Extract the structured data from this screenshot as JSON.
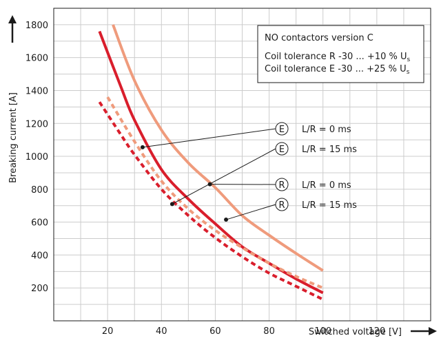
{
  "chart_data": {
    "type": "line",
    "xlabel": "Switched voltage [V]",
    "ylabel": "Breaking current [A]",
    "xlim": [
      0,
      140
    ],
    "ylim": [
      0,
      1900
    ],
    "xticks": [
      20,
      40,
      60,
      80,
      100,
      120
    ],
    "yticks": [
      200,
      400,
      600,
      800,
      1000,
      1200,
      1400,
      1600,
      1800
    ],
    "grid": true,
    "info_box": {
      "title": "NO contactors version C",
      "line1": "Coil tolerance R  -30 ... +10 % U",
      "line1_sub": "s",
      "line2": "Coil tolerance E  -30 ... +25 % U",
      "line2_sub": "s"
    },
    "series": [
      {
        "key": "E-0",
        "color": "#ef9b7c",
        "style": "solid",
        "x": [
          22,
          30,
          40,
          50,
          60,
          70,
          80,
          90,
          100
        ],
        "y": [
          1800,
          1460,
          1160,
          960,
          810,
          640,
          520,
          410,
          305
        ]
      },
      {
        "key": "R-0",
        "color": "#d91e2c",
        "style": "solid",
        "x": [
          17,
          25,
          30,
          40,
          50,
          60,
          70,
          80,
          90,
          100
        ],
        "y": [
          1760,
          1420,
          1220,
          920,
          740,
          590,
          450,
          350,
          255,
          170
        ]
      },
      {
        "key": "E-15",
        "color": "#ef9b7c",
        "style": "dashed",
        "x": [
          20,
          30,
          40,
          50,
          60,
          70,
          80,
          90,
          100
        ],
        "y": [
          1360,
          1090,
          850,
          680,
          550,
          445,
          350,
          270,
          200
        ]
      },
      {
        "key": "R-15",
        "color": "#d91e2c",
        "style": "dashed",
        "x": [
          17,
          25,
          30,
          40,
          50,
          60,
          70,
          80,
          90,
          100
        ],
        "y": [
          1330,
          1130,
          1010,
          800,
          640,
          505,
          390,
          290,
          210,
          130
        ]
      }
    ],
    "annotations": [
      {
        "badge": "E",
        "label": "L/R = 0 ms",
        "target": [
          33,
          1055
        ]
      },
      {
        "badge": "E",
        "label": "L/R = 15 ms",
        "target": [
          44,
          710
        ]
      },
      {
        "badge": "R",
        "label": "L/R = 0 ms",
        "target": [
          58,
          830
        ]
      },
      {
        "badge": "R",
        "label": "L/R = 15 ms",
        "target": [
          64,
          615
        ]
      }
    ]
  }
}
